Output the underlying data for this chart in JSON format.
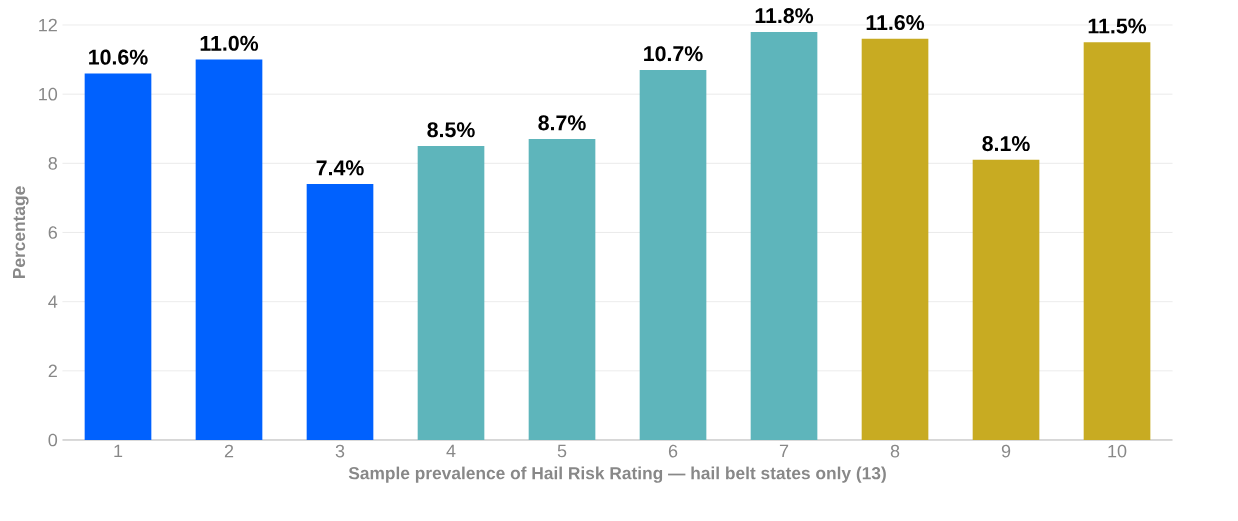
{
  "chart_data": {
    "type": "bar",
    "xlabel": "Sample prevalence of Hail Risk Rating — hail belt states only (13)",
    "ylabel": "Percentage",
    "categories": [
      "1",
      "2",
      "3",
      "4",
      "5",
      "6",
      "7",
      "8",
      "9",
      "10"
    ],
    "values": [
      10.6,
      11.0,
      7.4,
      8.5,
      8.7,
      10.7,
      11.8,
      11.6,
      8.1,
      11.5
    ],
    "value_labels": [
      "10.6%",
      "11.0%",
      "7.4%",
      "8.5%",
      "8.7%",
      "10.7%",
      "11.8%",
      "11.6%",
      "8.1%",
      "11.5%"
    ],
    "colors": [
      "#0061fe",
      "#0061fe",
      "#0061fe",
      "#5eb5bb",
      "#5eb5bb",
      "#5eb5bb",
      "#5eb5bb",
      "#c8ab22",
      "#c8ab22",
      "#c8ab22"
    ],
    "ylim": [
      0,
      12
    ],
    "yticks": [
      0,
      2,
      4,
      6,
      8,
      10,
      12
    ],
    "grid": "y"
  }
}
